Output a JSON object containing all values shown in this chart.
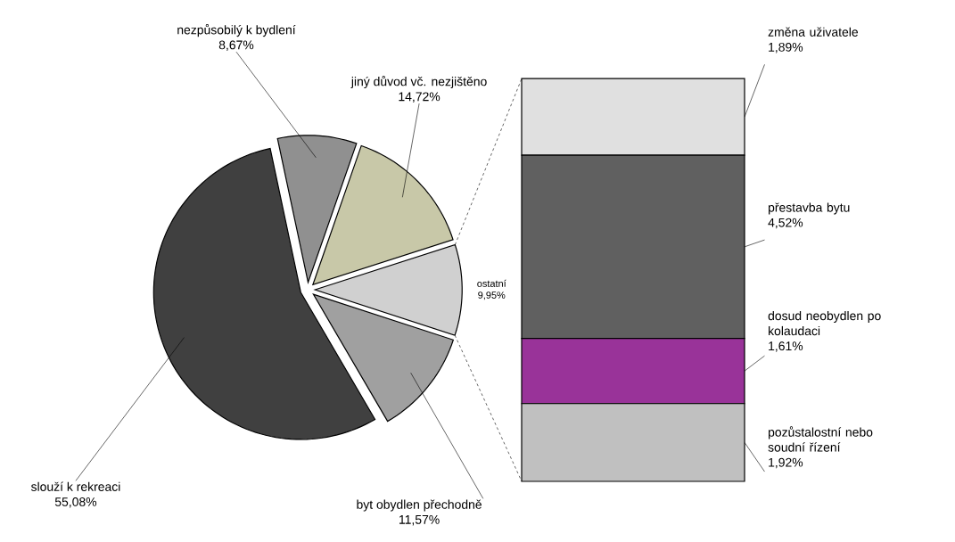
{
  "chart_data": [
    {
      "type": "pie",
      "categories": [
        "nezpůsobilý k bydlení",
        "jiný důvod vč. nezjištěno",
        "ostatní",
        "byt obydlen přechodně",
        "slouží k rekreaci"
      ],
      "values": [
        8.67,
        14.72,
        9.95,
        11.57,
        55.08
      ],
      "value_labels": [
        "8,67%",
        "14,72%",
        "9,95%",
        "11,57%",
        "55,08%"
      ],
      "colors": [
        "#909090",
        "#c8c8a8",
        "#d0d0d0",
        "#a0a0a0",
        "#404040"
      ]
    },
    {
      "type": "bar",
      "stacked": true,
      "categories": [
        null
      ],
      "series": [
        {
          "name": "pozůstalostní nebo soudní řízení",
          "color": "#c0c0c0",
          "values": [
            1.92
          ],
          "value_labels": [
            "1,92%"
          ]
        },
        {
          "name": "dosud neobydlen po kolaudaci",
          "color": "#993399",
          "values": [
            1.61
          ],
          "value_labels": [
            "1,61%"
          ]
        },
        {
          "name": "přestavba bytu",
          "color": "#606060",
          "values": [
            4.52
          ],
          "value_labels": [
            "4,52%"
          ]
        },
        {
          "name": "změna uživatele",
          "color": "#e0e0e0",
          "values": [
            1.89
          ],
          "value_labels": [
            "1,89%"
          ]
        }
      ]
    }
  ]
}
